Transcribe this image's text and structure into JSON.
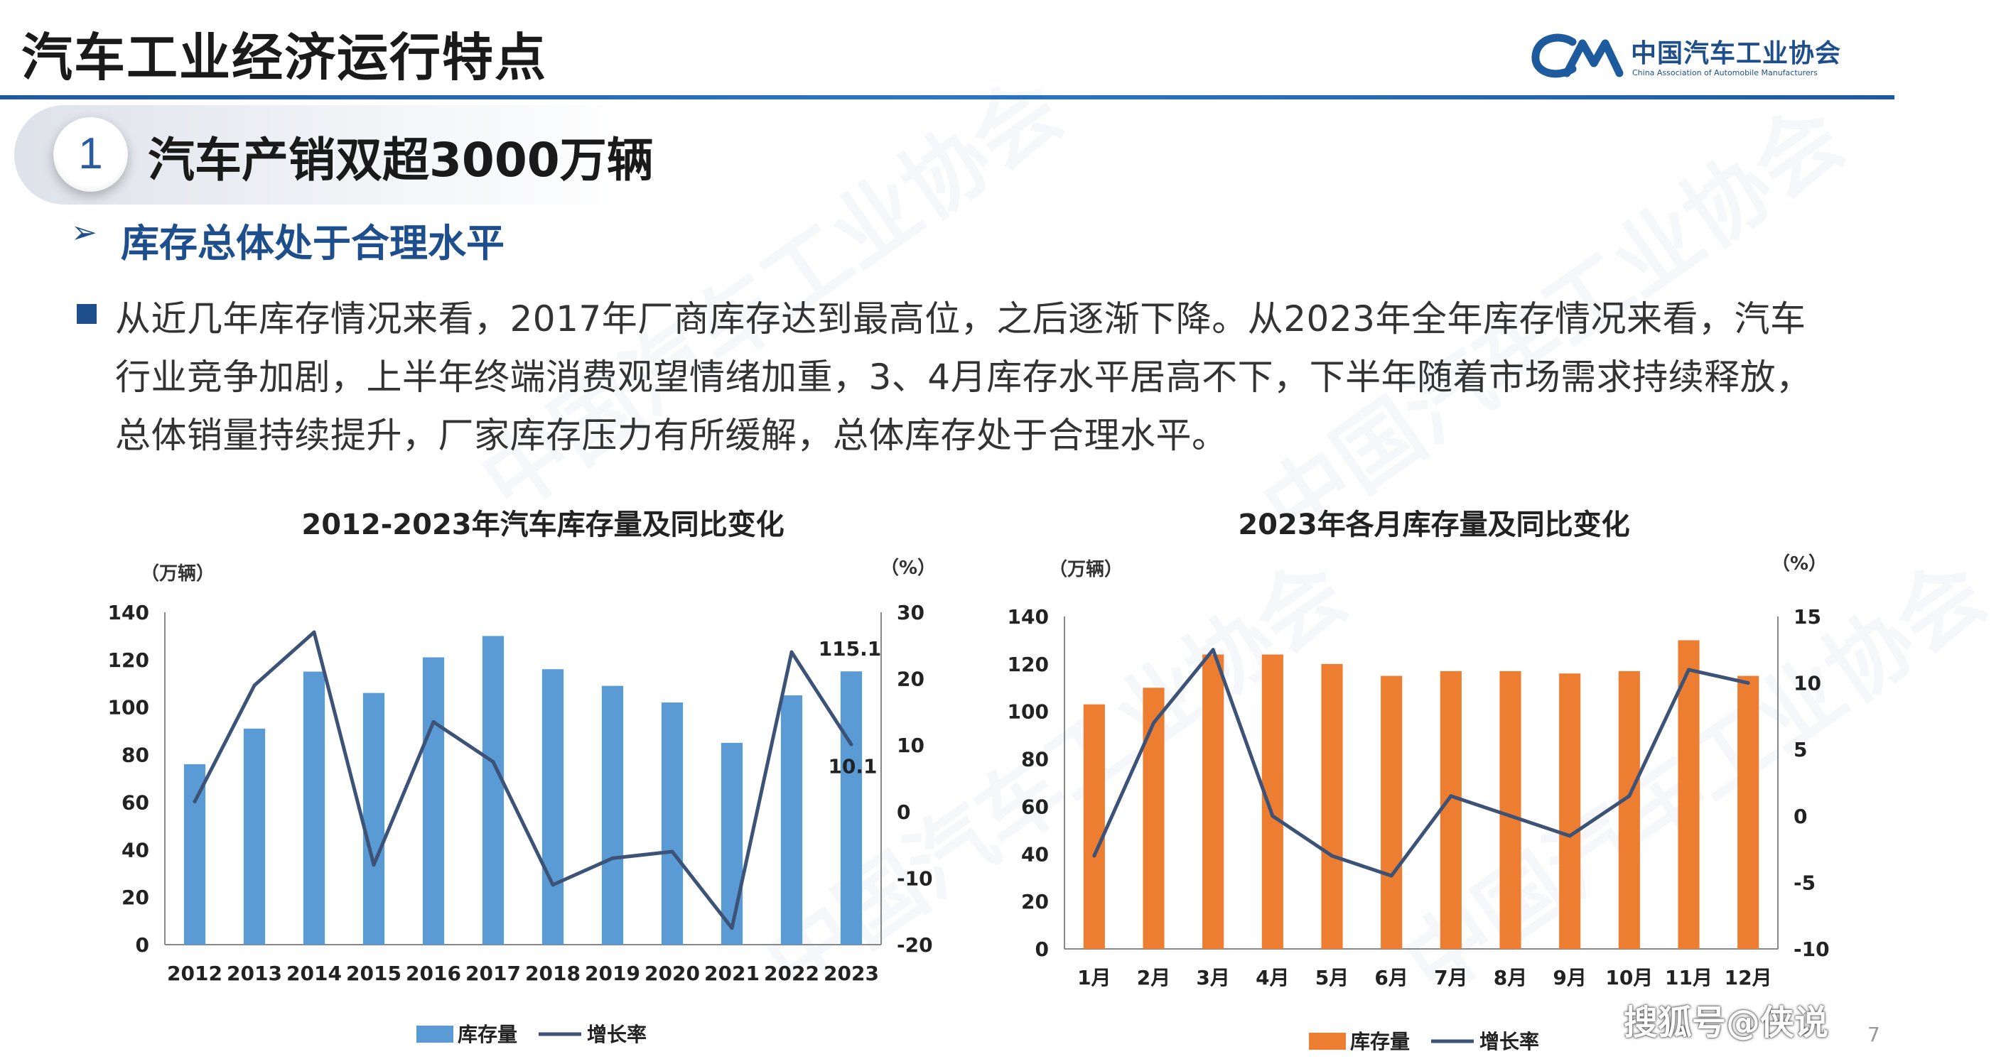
{
  "header": {
    "title": "汽车工业经济运行特点",
    "org_cn": "中国汽车工业协会",
    "org_en": "China Association of Automobile Manufacturers",
    "brand_color": "#1e4f8c"
  },
  "section": {
    "number": "1",
    "heading": "汽车产销双超3000万辆"
  },
  "subsection": {
    "marker": "➢",
    "heading": "库存总体处于合理水平"
  },
  "body": {
    "paragraph": "从近几年库存情况来看，2017年厂商库存达到最高位，之后逐渐下降。从2023年全年库存情况来看，汽车行业竞争加剧，上半年终端消费观望情绪加重，3、4月库存水平居高不下，下半年随着市场需求持续释放，总体销量持续提升，厂家库存压力有所缓解，总体库存处于合理水平。"
  },
  "footer": {
    "source_mark": "搜狐号@侠说",
    "page_number": "7"
  },
  "chart_data": [
    {
      "type": "bar",
      "title": "2012-2023年汽车库存量及同比变化",
      "left_unit": "（万辆）",
      "right_unit": "（%）",
      "categories": [
        "2012",
        "2013",
        "2014",
        "2015",
        "2016",
        "2017",
        "2018",
        "2019",
        "2020",
        "2021",
        "2022",
        "2023"
      ],
      "series": [
        {
          "name": "库存量",
          "kind": "bar",
          "axis": "left",
          "color": "#5b9bd5",
          "values": [
            76,
            91,
            115,
            106,
            121,
            130,
            116,
            109,
            102,
            85,
            105,
            115.1
          ]
        },
        {
          "name": "增长率",
          "kind": "line",
          "axis": "right",
          "color": "#3d5277",
          "values": [
            1.5,
            19,
            27,
            -8,
            13.5,
            7.5,
            -11,
            -7,
            -6,
            -17.5,
            24,
            10.1
          ]
        }
      ],
      "ylim_left": [
        0,
        140
      ],
      "yticks_left": [
        0,
        20,
        40,
        60,
        80,
        100,
        120,
        140
      ],
      "ylim_right": [
        -20,
        30
      ],
      "yticks_right": [
        -20,
        -10,
        0,
        10,
        20,
        30
      ],
      "annotations": [
        {
          "text": "115.1",
          "category": "2023",
          "series": "库存量"
        },
        {
          "text": "10.1",
          "category": "2023",
          "series": "增长率"
        }
      ],
      "grid": false,
      "legend": "bottom"
    },
    {
      "type": "bar",
      "title": "2023年各月库存量及同比变化",
      "left_unit": "（万辆）",
      "right_unit": "（%）",
      "categories": [
        "1月",
        "2月",
        "3月",
        "4月",
        "5月",
        "6月",
        "7月",
        "8月",
        "9月",
        "10月",
        "11月",
        "12月"
      ],
      "series": [
        {
          "name": "库存量",
          "kind": "bar",
          "axis": "left",
          "color": "#ed7d31",
          "values": [
            103,
            110,
            124,
            124,
            120,
            115,
            117,
            117,
            116,
            117,
            130,
            115
          ]
        },
        {
          "name": "增长率",
          "kind": "line",
          "axis": "right",
          "color": "#3d5277",
          "values": [
            -3,
            7,
            12.5,
            0,
            -3,
            -4.5,
            1.5,
            0,
            -1.5,
            1.5,
            11,
            10
          ]
        }
      ],
      "ylim_left": [
        0,
        140
      ],
      "yticks_left": [
        0,
        20,
        40,
        60,
        80,
        100,
        120,
        140
      ],
      "ylim_right": [
        -10,
        15
      ],
      "yticks_right": [
        -10,
        -5,
        0,
        5,
        10,
        15
      ],
      "grid": false,
      "legend": "bottom"
    }
  ]
}
